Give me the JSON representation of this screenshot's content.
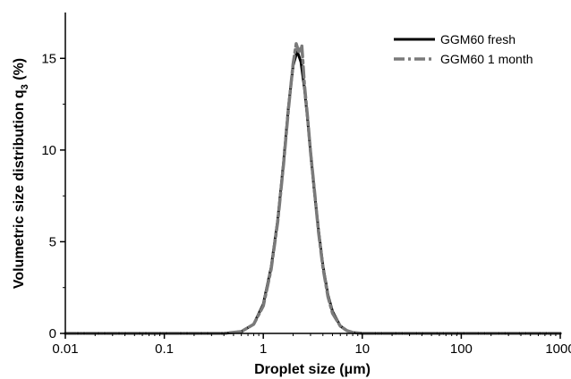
{
  "chart_data": {
    "type": "line",
    "xscale": "log",
    "xlim": [
      0.01,
      1000
    ],
    "ylim": [
      0,
      17.5
    ],
    "xlabel": "Droplet size (μm)",
    "ylabel_main": "Volumetric size distribution q",
    "ylabel_sub": "3",
    "ylabel_tail": " (%)",
    "xticks": [
      {
        "value": 0.01,
        "label": "0.01"
      },
      {
        "value": 0.1,
        "label": "0.1"
      },
      {
        "value": 1,
        "label": "1"
      },
      {
        "value": 10,
        "label": "10"
      },
      {
        "value": 100,
        "label": "100"
      },
      {
        "value": 1000,
        "label": "1000"
      }
    ],
    "yticks": [
      {
        "value": 0,
        "label": "0"
      },
      {
        "value": 5,
        "label": "5"
      },
      {
        "value": 10,
        "label": "10"
      },
      {
        "value": 15,
        "label": "15"
      }
    ],
    "legend_position": "top-right",
    "grid": false,
    "series": [
      {
        "name": "GGM60 fresh",
        "color": "#000000",
        "style": "solid",
        "x": [
          0.01,
          0.1,
          0.4,
          0.6,
          0.8,
          1.0,
          1.2,
          1.4,
          1.6,
          1.8,
          2.0,
          2.2,
          2.4,
          2.6,
          2.8,
          3.0,
          3.3,
          3.6,
          4.0,
          4.5,
          5.0,
          6.0,
          7.0,
          8.0,
          10.0,
          100,
          1000
        ],
        "y": [
          0,
          0,
          0,
          0.1,
          0.5,
          1.6,
          3.6,
          6.2,
          9.3,
          12.4,
          14.6,
          15.4,
          14.8,
          13.4,
          11.7,
          9.9,
          7.6,
          5.7,
          3.7,
          2.1,
          1.2,
          0.4,
          0.15,
          0.05,
          0,
          0,
          0
        ]
      },
      {
        "name": "GGM60 1 month",
        "color": "#7a7a7a",
        "style": "dashdot",
        "x": [
          0.01,
          0.1,
          0.4,
          0.6,
          0.8,
          1.0,
          1.2,
          1.4,
          1.6,
          1.8,
          2.0,
          2.15,
          2.3,
          2.45,
          2.6,
          2.8,
          3.0,
          3.3,
          3.6,
          4.0,
          4.5,
          5.0,
          6.0,
          7.0,
          8.0,
          10.0,
          100,
          1000
        ],
        "y": [
          0,
          0,
          0,
          0.1,
          0.5,
          1.5,
          3.5,
          6.1,
          9.2,
          12.3,
          14.7,
          15.8,
          15.3,
          15.7,
          13.6,
          11.8,
          9.9,
          7.7,
          5.6,
          3.6,
          2.0,
          1.1,
          0.4,
          0.15,
          0.05,
          0,
          0,
          0
        ]
      }
    ]
  }
}
